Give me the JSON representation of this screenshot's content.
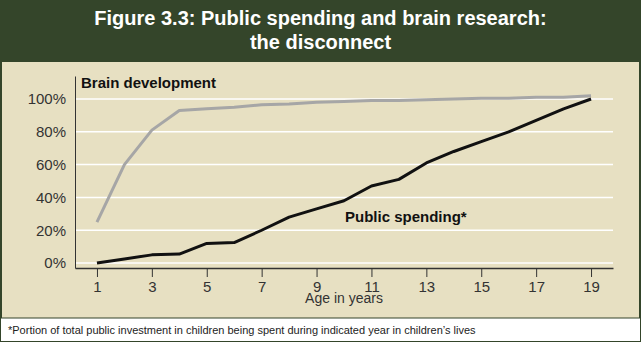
{
  "chart_data": {
    "type": "line",
    "title": [
      "Figure 3.3: Public spending and brain research:",
      "the disconnect"
    ],
    "x_label": "Age in years",
    "footnote": "*Portion of total public investment in children being spent during indicated year in children’s lives",
    "x": [
      1,
      2,
      3,
      4,
      5,
      6,
      7,
      8,
      9,
      10,
      11,
      12,
      13,
      14,
      15,
      16,
      17,
      18,
      19
    ],
    "series": [
      {
        "name": "Brain development",
        "color": "#a6a6a6",
        "values": [
          25,
          60,
          81,
          93,
          94,
          95,
          96.5,
          97,
          98,
          98.5,
          99,
          99,
          99.5,
          100,
          100.5,
          100.5,
          101,
          101,
          102
        ]
      },
      {
        "name": "Public spending*",
        "color": "#111111",
        "values": [
          0,
          2.5,
          5,
          5.5,
          12,
          12.5,
          20,
          28,
          33,
          38,
          47,
          51,
          61,
          68,
          74,
          80,
          87,
          94,
          100
        ]
      }
    ],
    "xlim": [
      0.2,
      19.8
    ],
    "xticks": [
      1,
      3,
      5,
      7,
      9,
      11,
      13,
      15,
      17,
      19
    ],
    "ylim": [
      -3,
      114
    ],
    "yticks": [
      {
        "value": 0,
        "label": "0%"
      },
      {
        "value": 20,
        "label": "20%"
      },
      {
        "value": 40,
        "label": "40%"
      },
      {
        "value": 60,
        "label": "60%"
      },
      {
        "value": 80,
        "label": "80%"
      },
      {
        "value": 100,
        "label": "100%"
      }
    ],
    "grid": true
  }
}
